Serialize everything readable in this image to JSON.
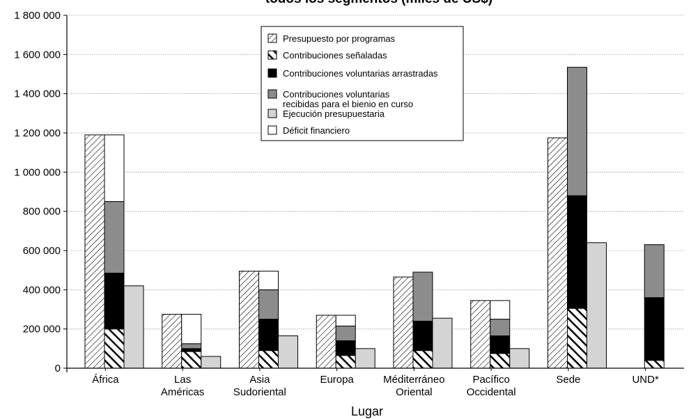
{
  "chart_data": {
    "type": "bar",
    "title": "todos los segmentos (miles de US$)",
    "xlabel": "Lugar",
    "ylabel": "",
    "ylim": [
      0,
      1800000
    ],
    "yticks": [
      0,
      200000,
      400000,
      600000,
      800000,
      1000000,
      1200000,
      1400000,
      1600000,
      1800000
    ],
    "ytick_labels": [
      "0",
      "200 000",
      "400 000",
      "600 000",
      "800 000",
      "1 000 000",
      "1 200 000",
      "1 400 000",
      "1 600 000",
      "1 800 000"
    ],
    "grid": true,
    "legend_position": "top-center",
    "categories": [
      [
        "África"
      ],
      [
        "Las",
        "Américas"
      ],
      [
        "Asia",
        "Sudoriental"
      ],
      [
        "Europa"
      ],
      [
        "Méditerráneo",
        "Oriental"
      ],
      [
        "Pacífico",
        "Occidental"
      ],
      [
        "Sede"
      ],
      [
        "UND*"
      ]
    ],
    "series": [
      {
        "name": "Presupuesto por programas",
        "pattern": "hatch-light",
        "values": [
          1190000,
          275000,
          495000,
          270000,
          465000,
          345000,
          1175000,
          0
        ]
      },
      {
        "name": "Contribuciones señaladas",
        "pattern": "hatch-bold",
        "values": [
          200000,
          85000,
          90000,
          65000,
          90000,
          75000,
          305000,
          40000
        ]
      },
      {
        "name": "Contribuciones voluntarias arrastradas",
        "color": "#000000",
        "values": [
          285000,
          15000,
          160000,
          75000,
          150000,
          90000,
          575000,
          320000
        ]
      },
      {
        "name": "Contribuciones voluntarias recibidas para el bienio en curso",
        "color": "#8c8c8c",
        "values": [
          365000,
          25000,
          150000,
          75000,
          250000,
          85000,
          655000,
          270000
        ]
      },
      {
        "name": "Ejecución presupuestaria",
        "color": "#d4d4d4",
        "values": [
          420000,
          60000,
          165000,
          100000,
          255000,
          100000,
          640000,
          0
        ]
      },
      {
        "name": "Déficit financiero",
        "color": "#ffffff",
        "values": [
          340000,
          150000,
          95000,
          55000,
          0,
          95000,
          0,
          0
        ]
      }
    ],
    "legend_labels": [
      [
        "Presupuesto por programas"
      ],
      [
        "Contribuciones señaladas"
      ],
      [
        "Contribuciones voluntarias arrastradas"
      ],
      [
        "Contribuciones voluntarias",
        "recibidas para el bienio en curso"
      ],
      [
        "Ejecución presupuestaria"
      ],
      [
        "Déficit financiero"
      ]
    ]
  }
}
